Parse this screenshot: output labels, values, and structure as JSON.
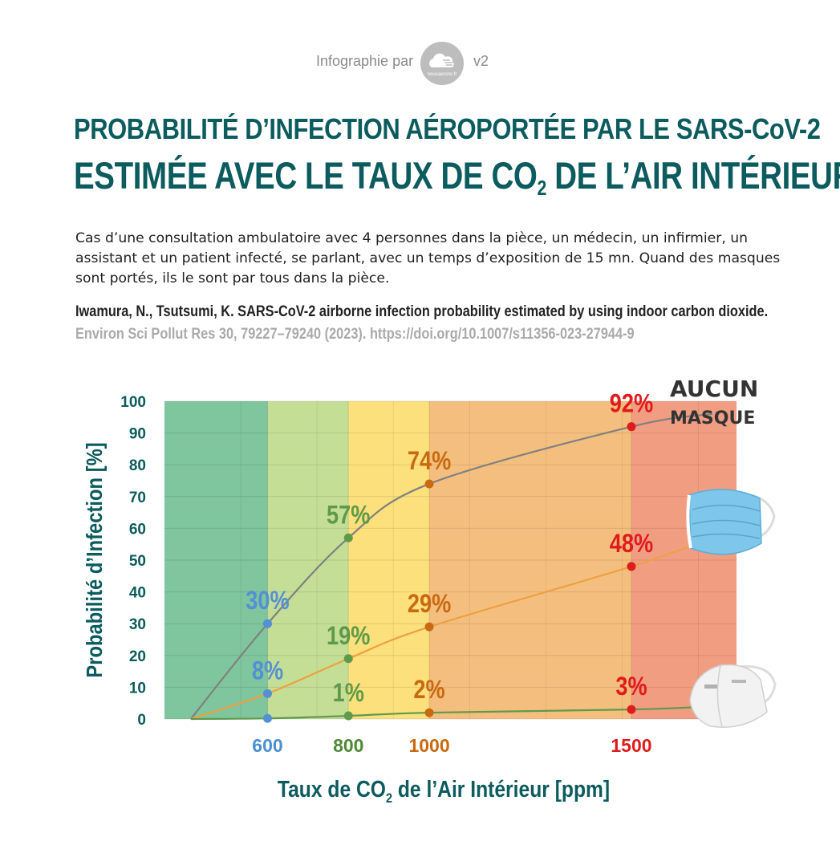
{
  "header": {
    "credit_prefix": "Infographie par",
    "logo_text": "nousaerons.fr",
    "version": "v2"
  },
  "title": {
    "line1": "PROBABILITÉ D’INFECTION AÉROPORTÉE PAR LE SARS-CoV-2",
    "line2_main": "ESTIMÉE AVEC LE TAUX DE CO",
    "line2_sub": "2",
    "line2_end": " DE L’AIR INTÉRIEUR"
  },
  "description": "Cas d’une consultation ambulatoire avec 4 personnes dans la pièce, un médecin, un infirmier, un assistant et un patient infecté, se parlant, avec un temps d’exposition de 15 mn. Quand des masques sont portés, ils le sont par tous dans la pièce.",
  "citation": {
    "authors_title": "Iwamura, N., Tsutsumi, K. SARS-CoV-2 airborne infection probability estimated by using indoor carbon dioxide.",
    "journal": "Environ Sci Pollut Res 30, 79227–79240 (2023). https://doi.org/10.1007/s11356-023-27944-9"
  },
  "chart_data": {
    "type": "line",
    "xlabel_main": "Taux de CO",
    "xlabel_sub": "2",
    "xlabel_end": " de l’Air Intérieur [ppm]",
    "ylabel": "Probabilité d’Infection [%]",
    "ylim": [
      0,
      100
    ],
    "xlim": [
      345,
      1760
    ],
    "yticks": [
      "0",
      "10",
      "20",
      "30",
      "40",
      "50",
      "60",
      "70",
      "80",
      "90",
      "100"
    ],
    "xticks": [
      {
        "value": 600,
        "label": "600",
        "color": "#4a8fd0"
      },
      {
        "value": 800,
        "label": "800",
        "color": "#4e8a34"
      },
      {
        "value": 1000,
        "label": "1000",
        "color": "#c96a12"
      },
      {
        "value": 1500,
        "label": "1500",
        "color": "#e01b1b"
      }
    ],
    "zones": [
      {
        "from": 345,
        "to": 600,
        "color": "#7fc59d"
      },
      {
        "from": 600,
        "to": 800,
        "color": "#c4de96"
      },
      {
        "from": 800,
        "to": 1000,
        "color": "#fbe07c"
      },
      {
        "from": 1000,
        "to": 1500,
        "color": "#f4bf7e"
      },
      {
        "from": 1500,
        "to": 1760,
        "color": "#f19d82"
      }
    ],
    "grid": true,
    "series": [
      {
        "name": "AUCUN MASQUE",
        "name_line1": "AUCUN",
        "name_line2": "MASQUE",
        "color": "#808080",
        "x": [
          410,
          600,
          800,
          1000,
          1500,
          1700
        ],
        "y": [
          0,
          30,
          57,
          74,
          92,
          96
        ]
      },
      {
        "name": "Masque chirurgical",
        "color": "#eda040",
        "x": [
          410,
          600,
          800,
          1000,
          1500,
          1700
        ],
        "y": [
          0,
          8,
          19,
          29,
          48,
          57
        ]
      },
      {
        "name": "Masque FFP2",
        "color": "#5f9a4a",
        "x": [
          410,
          600,
          800,
          1000,
          1500,
          1700
        ],
        "y": [
          0,
          0.2,
          1,
          2,
          3,
          4
        ]
      }
    ],
    "points": [
      {
        "x": 600,
        "y": 30,
        "label": "30%",
        "color": "#5490d4"
      },
      {
        "x": 600,
        "y": 8,
        "label": "8%",
        "color": "#5490d4"
      },
      {
        "x": 600,
        "y": 0.2,
        "label": "",
        "color": "#5490d4"
      },
      {
        "x": 800,
        "y": 57,
        "label": "57%",
        "color": "#5f9a4a"
      },
      {
        "x": 800,
        "y": 19,
        "label": "19%",
        "color": "#5f9a4a"
      },
      {
        "x": 800,
        "y": 1,
        "label": "1%",
        "color": "#5f9a4a"
      },
      {
        "x": 1000,
        "y": 74,
        "label": "74%",
        "color": "#c96a12"
      },
      {
        "x": 1000,
        "y": 29,
        "label": "29%",
        "color": "#c96a12"
      },
      {
        "x": 1000,
        "y": 2,
        "label": "2%",
        "color": "#c96a12"
      },
      {
        "x": 1500,
        "y": 92,
        "label": "92%",
        "color": "#e01b1b"
      },
      {
        "x": 1500,
        "y": 48,
        "label": "48%",
        "color": "#e01b1b"
      },
      {
        "x": 1500,
        "y": 3,
        "label": "3%",
        "color": "#e01b1b"
      }
    ],
    "icons": [
      "surgical-mask-icon",
      "ffp2-mask-icon"
    ]
  }
}
